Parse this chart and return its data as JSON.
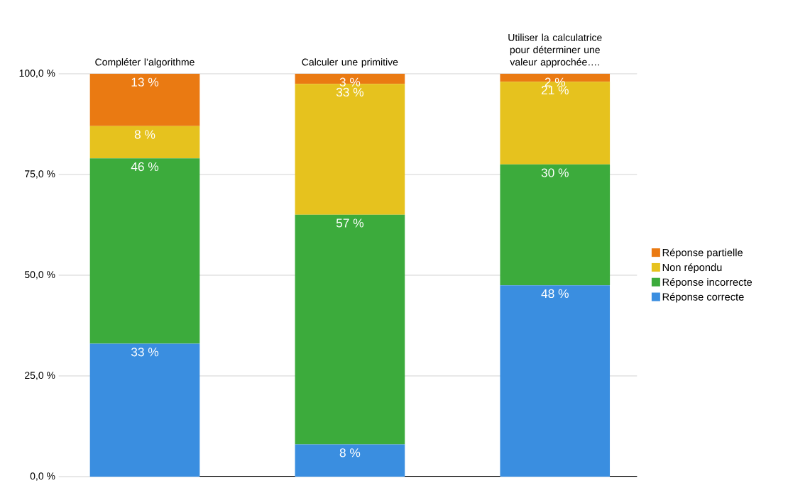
{
  "chart_data": {
    "type": "bar",
    "stacked": true,
    "categories": [
      "Compléter l’algorithme",
      "Calculer une primitive",
      "Utiliser la calculatrice pour déterminer une valeur approchée…."
    ],
    "series": [
      {
        "name": "Réponse correcte",
        "color": "#3a8ee0",
        "values": [
          33,
          8,
          47.5
        ],
        "value_labels": [
          "33 %",
          "8 %",
          "48 %"
        ]
      },
      {
        "name": "Réponse incorrecte",
        "color": "#3cab3c",
        "values": [
          46,
          57,
          30
        ],
        "value_labels": [
          "46 %",
          "57 %",
          "30 %"
        ]
      },
      {
        "name": "Non répondu",
        "color": "#e6c21e",
        "values": [
          8,
          32.5,
          20.5
        ],
        "value_labels": [
          "8 %",
          "33 %",
          "21 %"
        ]
      },
      {
        "name": "Réponse partielle",
        "color": "#ea7a12",
        "values": [
          13,
          2.5,
          2
        ],
        "value_labels": [
          "13 %",
          "3 %",
          "2 %"
        ]
      }
    ],
    "ylim": [
      0,
      100
    ],
    "yticks": [
      {
        "value": 0,
        "label": "0,0 %"
      },
      {
        "value": 25,
        "label": "25,0 %"
      },
      {
        "value": 50,
        "label": "50,0 %"
      },
      {
        "value": 75,
        "label": "75,0 %"
      },
      {
        "value": 100,
        "label": "100,0 %"
      }
    ],
    "grid": "y",
    "legend": "right"
  }
}
